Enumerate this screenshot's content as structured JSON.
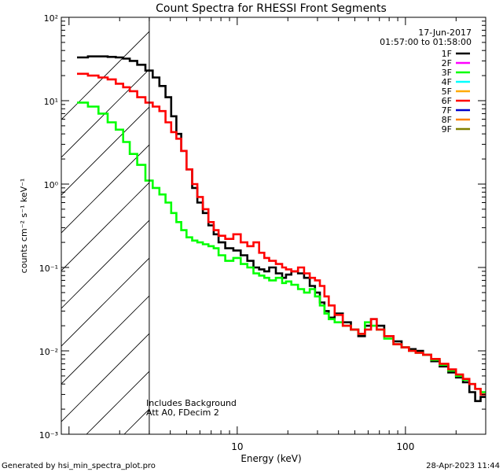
{
  "chart_data": {
    "type": "line",
    "title": "Count Spectra for RHESSI Front Segments",
    "xlabel": "Energy (keV)",
    "ylabel": "counts cm⁻² s⁻¹ keV⁻¹",
    "xscale": "log",
    "yscale": "log",
    "xlim": [
      0.9,
      300
    ],
    "ylim": [
      0.001,
      100
    ],
    "x_ticks": [
      {
        "value": 10,
        "label": "10"
      },
      {
        "value": 100,
        "label": "100"
      }
    ],
    "y_ticks": [
      {
        "value": 0.001,
        "label": "10⁻³"
      },
      {
        "value": 0.01,
        "label": "10⁻²"
      },
      {
        "value": 0.1,
        "label": "10⁻¹"
      },
      {
        "value": 1,
        "label": "10⁰"
      },
      {
        "value": 10,
        "label": "10¹"
      },
      {
        "value": 100,
        "label": "10²"
      }
    ],
    "date": "17-Jun-2017",
    "time_range": "01:57:00 to 01:58:00",
    "legend": [
      {
        "name": "1F",
        "color": "#000000"
      },
      {
        "name": "2F",
        "color": "#ff00ff"
      },
      {
        "name": "3F",
        "color": "#00ff00"
      },
      {
        "name": "4F",
        "color": "#00ffff"
      },
      {
        "name": "5F",
        "color": "#ffaa00"
      },
      {
        "name": "6F",
        "color": "#ff0000"
      },
      {
        "name": "7F",
        "color": "#0000cc"
      },
      {
        "name": "8F",
        "color": "#ff8000"
      },
      {
        "name": "9F",
        "color": "#808000"
      }
    ],
    "threshold_keV": 3,
    "annotations": [
      "Includes Background",
      "Att A0, FDecim 2"
    ],
    "series": [
      {
        "name": "1F",
        "color": "#000000",
        "points": [
          [
            1.2,
            33
          ],
          [
            1.4,
            34
          ],
          [
            1.6,
            34
          ],
          [
            1.8,
            33.5
          ],
          [
            2.0,
            33
          ],
          [
            2.2,
            32
          ],
          [
            2.4,
            30
          ],
          [
            2.7,
            27
          ],
          [
            3.0,
            23
          ],
          [
            3.3,
            19
          ],
          [
            3.6,
            15
          ],
          [
            3.9,
            11
          ],
          [
            4.2,
            6.5
          ],
          [
            4.5,
            4.0
          ],
          [
            4.8,
            2.5
          ],
          [
            5.2,
            1.5
          ],
          [
            5.6,
            0.9
          ],
          [
            6.0,
            0.6
          ],
          [
            6.5,
            0.45
          ],
          [
            7.0,
            0.32
          ],
          [
            7.5,
            0.25
          ],
          [
            8.0,
            0.2
          ],
          [
            9.0,
            0.17
          ],
          [
            10,
            0.16
          ],
          [
            11,
            0.14
          ],
          [
            12,
            0.12
          ],
          [
            13,
            0.1
          ],
          [
            14,
            0.095
          ],
          [
            15,
            0.09
          ],
          [
            16,
            0.1
          ],
          [
            18,
            0.085
          ],
          [
            19,
            0.075
          ],
          [
            20,
            0.082
          ],
          [
            22,
            0.09
          ],
          [
            24,
            0.085
          ],
          [
            26,
            0.075
          ],
          [
            28,
            0.06
          ],
          [
            30,
            0.05
          ],
          [
            32,
            0.038
          ],
          [
            34,
            0.03
          ],
          [
            36,
            0.025
          ],
          [
            40,
            0.028
          ],
          [
            45,
            0.022
          ],
          [
            50,
            0.018
          ],
          [
            55,
            0.015
          ],
          [
            60,
            0.02
          ],
          [
            65,
            0.024
          ],
          [
            70,
            0.02
          ],
          [
            80,
            0.015
          ],
          [
            90,
            0.013
          ],
          [
            100,
            0.011
          ],
          [
            110,
            0.0105
          ],
          [
            120,
            0.01
          ],
          [
            135,
            0.009
          ],
          [
            150,
            0.0075
          ],
          [
            170,
            0.0065
          ],
          [
            190,
            0.0055
          ],
          [
            210,
            0.0048
          ],
          [
            230,
            0.0042
          ],
          [
            250,
            0.0032
          ],
          [
            270,
            0.0025
          ],
          [
            290,
            0.0028
          ]
        ]
      },
      {
        "name": "3F",
        "color": "#00ff00",
        "points": [
          [
            1.2,
            9.5
          ],
          [
            1.4,
            8.5
          ],
          [
            1.6,
            7.0
          ],
          [
            1.8,
            5.5
          ],
          [
            2.0,
            4.5
          ],
          [
            2.2,
            3.2
          ],
          [
            2.4,
            2.3
          ],
          [
            2.7,
            1.7
          ],
          [
            3.0,
            1.1
          ],
          [
            3.3,
            0.9
          ],
          [
            3.6,
            0.75
          ],
          [
            3.9,
            0.6
          ],
          [
            4.2,
            0.45
          ],
          [
            4.5,
            0.35
          ],
          [
            4.8,
            0.28
          ],
          [
            5.2,
            0.23
          ],
          [
            5.6,
            0.21
          ],
          [
            6.0,
            0.2
          ],
          [
            6.5,
            0.19
          ],
          [
            7.0,
            0.18
          ],
          [
            7.5,
            0.17
          ],
          [
            8.0,
            0.14
          ],
          [
            9.0,
            0.12
          ],
          [
            10,
            0.13
          ],
          [
            11,
            0.11
          ],
          [
            12,
            0.1
          ],
          [
            13,
            0.085
          ],
          [
            14,
            0.08
          ],
          [
            15,
            0.075
          ],
          [
            16,
            0.07
          ],
          [
            18,
            0.075
          ],
          [
            19,
            0.065
          ],
          [
            20,
            0.068
          ],
          [
            22,
            0.062
          ],
          [
            24,
            0.055
          ],
          [
            26,
            0.05
          ],
          [
            28,
            0.055
          ],
          [
            30,
            0.045
          ],
          [
            32,
            0.035
          ],
          [
            34,
            0.028
          ],
          [
            36,
            0.024
          ],
          [
            40,
            0.022
          ],
          [
            45,
            0.02
          ],
          [
            50,
            0.018
          ],
          [
            55,
            0.016
          ],
          [
            60,
            0.022
          ],
          [
            65,
            0.02
          ],
          [
            70,
            0.018
          ],
          [
            80,
            0.014
          ],
          [
            90,
            0.012
          ],
          [
            100,
            0.011
          ],
          [
            110,
            0.01
          ],
          [
            120,
            0.0095
          ],
          [
            135,
            0.009
          ],
          [
            150,
            0.0078
          ],
          [
            170,
            0.0068
          ],
          [
            190,
            0.0058
          ],
          [
            210,
            0.005
          ],
          [
            230,
            0.0045
          ],
          [
            250,
            0.004
          ],
          [
            270,
            0.0035
          ],
          [
            290,
            0.0032
          ]
        ]
      },
      {
        "name": "6F",
        "color": "#ff0000",
        "points": [
          [
            1.2,
            21
          ],
          [
            1.4,
            20
          ],
          [
            1.6,
            19
          ],
          [
            1.8,
            18
          ],
          [
            2.0,
            16
          ],
          [
            2.2,
            14.5
          ],
          [
            2.4,
            13
          ],
          [
            2.7,
            11
          ],
          [
            3.0,
            9.5
          ],
          [
            3.3,
            8.5
          ],
          [
            3.6,
            7.5
          ],
          [
            3.9,
            5.5
          ],
          [
            4.2,
            4.2
          ],
          [
            4.5,
            3.5
          ],
          [
            4.8,
            2.5
          ],
          [
            5.2,
            1.5
          ],
          [
            5.6,
            1.0
          ],
          [
            6.0,
            0.7
          ],
          [
            6.5,
            0.5
          ],
          [
            7.0,
            0.35
          ],
          [
            7.5,
            0.28
          ],
          [
            8.0,
            0.24
          ],
          [
            9.0,
            0.22
          ],
          [
            10,
            0.25
          ],
          [
            11,
            0.2
          ],
          [
            12,
            0.18
          ],
          [
            13,
            0.2
          ],
          [
            14,
            0.15
          ],
          [
            15,
            0.13
          ],
          [
            16,
            0.12
          ],
          [
            18,
            0.11
          ],
          [
            19,
            0.1
          ],
          [
            20,
            0.095
          ],
          [
            22,
            0.09
          ],
          [
            24,
            0.1
          ],
          [
            26,
            0.085
          ],
          [
            28,
            0.075
          ],
          [
            30,
            0.07
          ],
          [
            32,
            0.06
          ],
          [
            34,
            0.045
          ],
          [
            36,
            0.035
          ],
          [
            40,
            0.027
          ],
          [
            45,
            0.02
          ],
          [
            50,
            0.018
          ],
          [
            55,
            0.016
          ],
          [
            60,
            0.018
          ],
          [
            65,
            0.024
          ],
          [
            70,
            0.018
          ],
          [
            80,
            0.015
          ],
          [
            90,
            0.012
          ],
          [
            100,
            0.011
          ],
          [
            110,
            0.01
          ],
          [
            120,
            0.0095
          ],
          [
            135,
            0.009
          ],
          [
            150,
            0.008
          ],
          [
            170,
            0.007
          ],
          [
            190,
            0.006
          ],
          [
            210,
            0.0052
          ],
          [
            230,
            0.0046
          ],
          [
            250,
            0.004
          ],
          [
            270,
            0.0035
          ],
          [
            290,
            0.003
          ]
        ]
      }
    ]
  },
  "footer": {
    "generated_by": "Generated by hsi_min_spectra_plot.pro",
    "timestamp": "28-Apr-2023 11:44"
  }
}
